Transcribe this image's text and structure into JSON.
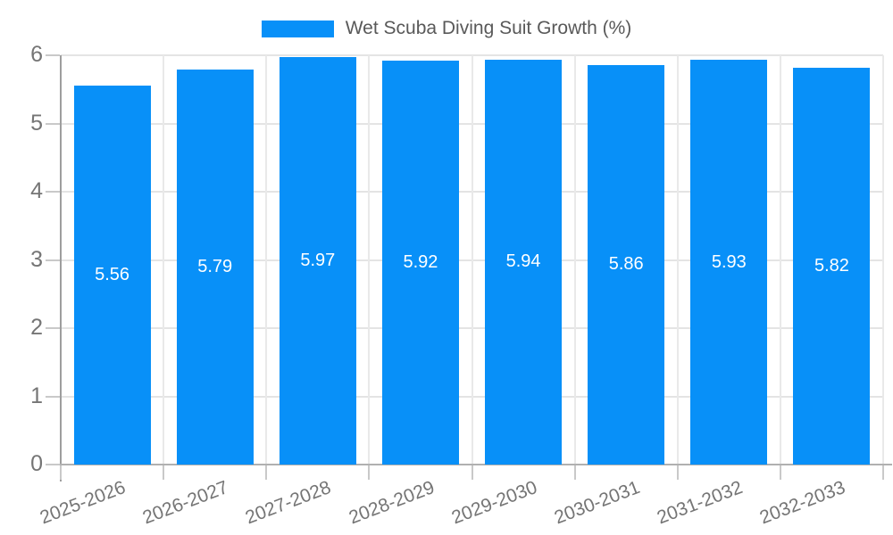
{
  "chart_data": {
    "type": "bar",
    "legend_label": "Wet Scuba Diving Suit Growth (%)",
    "categories": [
      "2025-2026",
      "2026-2027",
      "2027-2028",
      "2028-2029",
      "2029-2030",
      "2030-2031",
      "2031-2032",
      "2032-2033"
    ],
    "values": [
      5.56,
      5.79,
      5.97,
      5.92,
      5.94,
      5.86,
      5.93,
      5.82
    ],
    "value_labels": [
      "5.56",
      "5.79",
      "5.97",
      "5.92",
      "5.94",
      "5.86",
      "5.93",
      "5.82"
    ],
    "ylim": [
      0,
      6
    ],
    "yticks": [
      0,
      1,
      2,
      3,
      4,
      5,
      6
    ],
    "grid": true,
    "legend_position": "top-center",
    "x_label_rotation_deg": -21,
    "colors": {
      "bar": "#0890f8",
      "bar_label": "#ffffff",
      "axis_text": "#757575",
      "legend_text": "#595959",
      "grid_h": "#e4e4e4",
      "grid_v": "#e9e9e9",
      "tick": "#c9c9c9",
      "axis_line_y": "#9e9e9e",
      "axis_line_x": "#b0b0b0"
    }
  }
}
